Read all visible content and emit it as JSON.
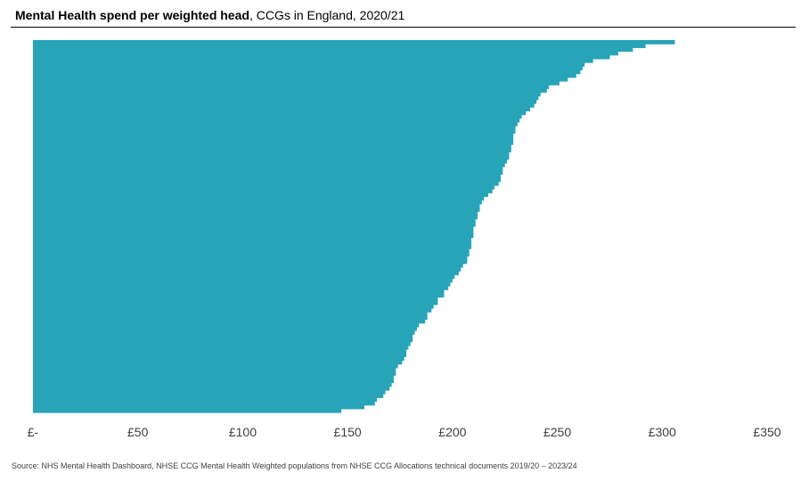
{
  "title_bold": "Mental Health spend per weighted head",
  "title_rest": ", CCGs in England, 2020/21",
  "source": "Source: NHS Mental Health Dashboard, NHSE CCG Mental Health Weighted populations from NHSE CCG Allocations technical documents 2019/20 – 2023/24",
  "chart_data": {
    "type": "bar",
    "orientation": "horizontal",
    "sort": "descending",
    "color": "#27A4B8",
    "grid": false,
    "legend": "none",
    "xlim": [
      0,
      350
    ],
    "x_ticks": [
      {
        "value": 0,
        "label": "£-"
      },
      {
        "value": 50,
        "label": "£50"
      },
      {
        "value": 100,
        "label": "£100"
      },
      {
        "value": 150,
        "label": "£150"
      },
      {
        "value": 200,
        "label": "£200"
      },
      {
        "value": 250,
        "label": "£250"
      },
      {
        "value": 300,
        "label": "£300"
      },
      {
        "value": 350,
        "label": "£350"
      }
    ],
    "values": [
      306,
      292,
      286,
      279,
      275,
      267,
      263,
      262,
      261,
      259,
      255,
      251,
      246,
      245,
      242,
      241,
      240,
      239,
      237,
      235,
      233,
      232,
      231,
      230,
      230,
      229,
      229,
      229,
      228,
      228,
      227,
      227,
      226,
      225,
      224,
      224,
      223,
      223,
      222,
      220,
      219,
      217,
      215,
      214,
      213,
      213,
      212,
      212,
      211,
      211,
      210,
      210,
      210,
      209,
      209,
      209,
      208,
      208,
      207,
      207,
      205,
      204,
      203,
      201,
      200,
      199,
      198,
      196,
      196,
      193,
      193,
      191,
      190,
      188,
      188,
      187,
      184,
      183,
      182,
      181,
      181,
      180,
      179,
      178,
      178,
      177,
      176,
      174,
      173,
      173,
      172,
      172,
      171,
      170,
      168,
      167,
      164,
      163,
      158,
      147
    ]
  }
}
